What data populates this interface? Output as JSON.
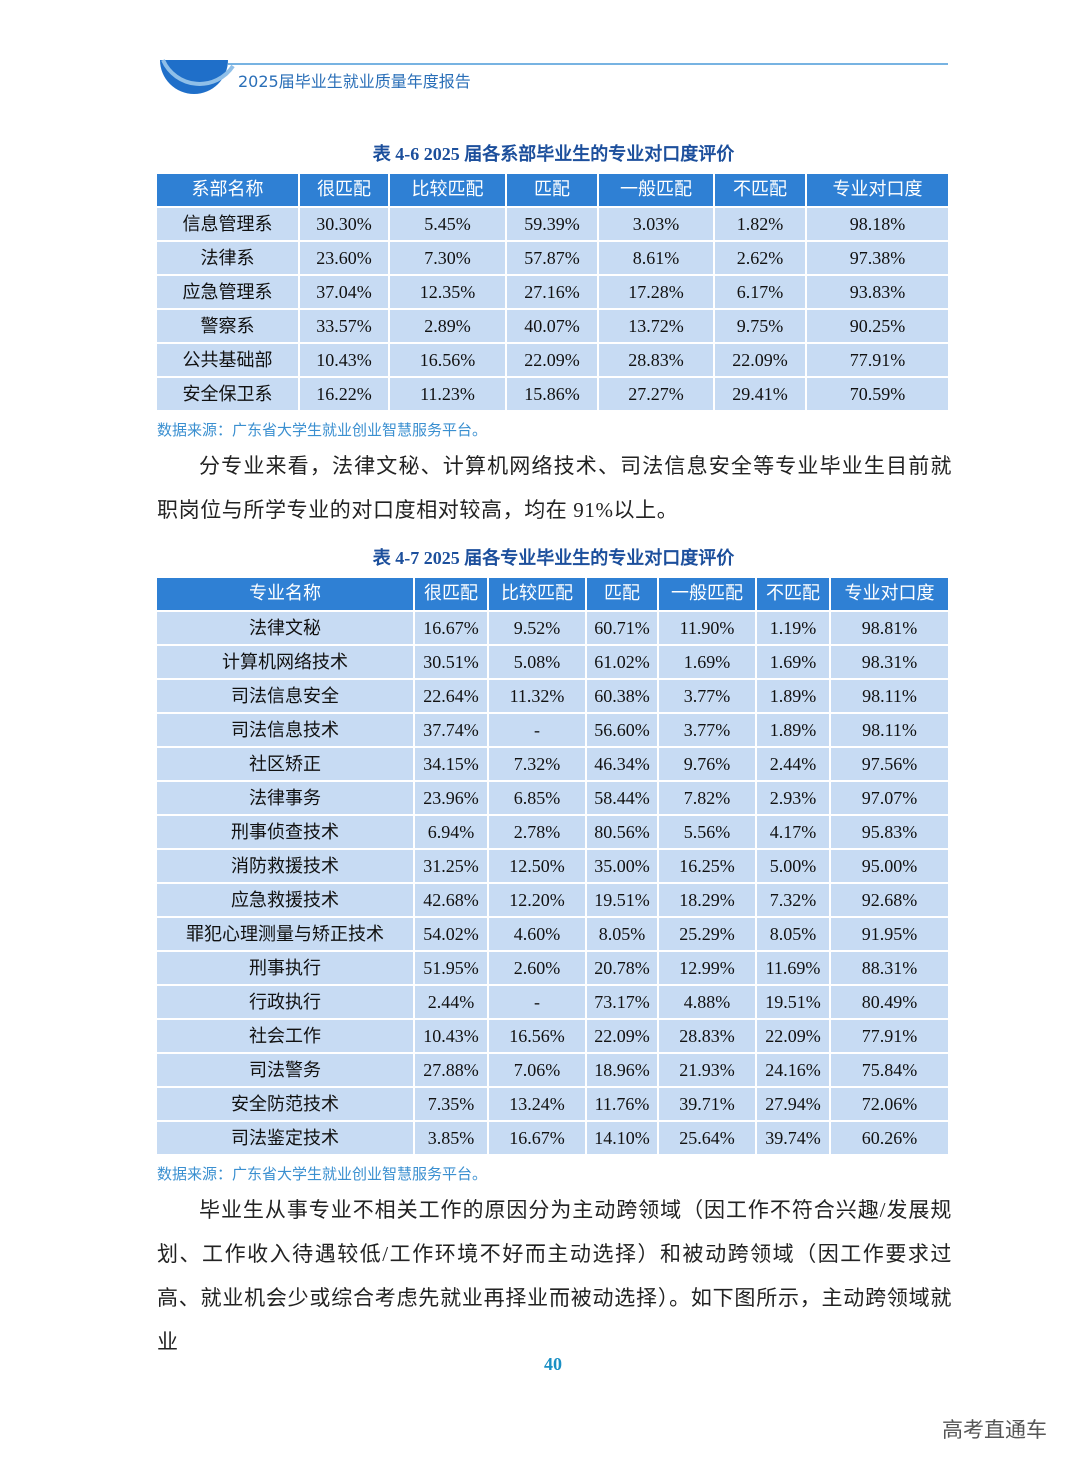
{
  "header": {
    "title": "2025届毕业生就业质量年度报告"
  },
  "table1": {
    "caption": "表 4-6  2025 届各系部毕业生的专业对口度评价",
    "headers": [
      "系部名称",
      "很匹配",
      "比较匹配",
      "匹配",
      "一般匹配",
      "不匹配",
      "专业对口度"
    ],
    "rows": [
      [
        "信息管理系",
        "30.30%",
        "5.45%",
        "59.39%",
        "3.03%",
        "1.82%",
        "98.18%"
      ],
      [
        "法律系",
        "23.60%",
        "7.30%",
        "57.87%",
        "8.61%",
        "2.62%",
        "97.38%"
      ],
      [
        "应急管理系",
        "37.04%",
        "12.35%",
        "27.16%",
        "17.28%",
        "6.17%",
        "93.83%"
      ],
      [
        "警察系",
        "33.57%",
        "2.89%",
        "40.07%",
        "13.72%",
        "9.75%",
        "90.25%"
      ],
      [
        "公共基础部",
        "10.43%",
        "16.56%",
        "22.09%",
        "28.83%",
        "22.09%",
        "77.91%"
      ],
      [
        "安全保卫系",
        "16.22%",
        "11.23%",
        "15.86%",
        "27.27%",
        "29.41%",
        "70.59%"
      ]
    ],
    "source": "数据来源：广东省大学生就业创业智慧服务平台。"
  },
  "paragraph1": "分专业来看，法律文秘、计算机网络技术、司法信息安全等专业毕业生目前就职岗位与所学专业的对口度相对较高，均在 91%以上。",
  "table2": {
    "caption": "表 4-7  2025 届各专业毕业生的专业对口度评价",
    "headers": [
      "专业名称",
      "很匹配",
      "比较匹配",
      "匹配",
      "一般匹配",
      "不匹配",
      "专业对口度"
    ],
    "rows": [
      [
        "法律文秘",
        "16.67%",
        "9.52%",
        "60.71%",
        "11.90%",
        "1.19%",
        "98.81%"
      ],
      [
        "计算机网络技术",
        "30.51%",
        "5.08%",
        "61.02%",
        "1.69%",
        "1.69%",
        "98.31%"
      ],
      [
        "司法信息安全",
        "22.64%",
        "11.32%",
        "60.38%",
        "3.77%",
        "1.89%",
        "98.11%"
      ],
      [
        "司法信息技术",
        "37.74%",
        "-",
        "56.60%",
        "3.77%",
        "1.89%",
        "98.11%"
      ],
      [
        "社区矫正",
        "34.15%",
        "7.32%",
        "46.34%",
        "9.76%",
        "2.44%",
        "97.56%"
      ],
      [
        "法律事务",
        "23.96%",
        "6.85%",
        "58.44%",
        "7.82%",
        "2.93%",
        "97.07%"
      ],
      [
        "刑事侦查技术",
        "6.94%",
        "2.78%",
        "80.56%",
        "5.56%",
        "4.17%",
        "95.83%"
      ],
      [
        "消防救援技术",
        "31.25%",
        "12.50%",
        "35.00%",
        "16.25%",
        "5.00%",
        "95.00%"
      ],
      [
        "应急救援技术",
        "42.68%",
        "12.20%",
        "19.51%",
        "18.29%",
        "7.32%",
        "92.68%"
      ],
      [
        "罪犯心理测量与矫正技术",
        "54.02%",
        "4.60%",
        "8.05%",
        "25.29%",
        "8.05%",
        "91.95%"
      ],
      [
        "刑事执行",
        "51.95%",
        "2.60%",
        "20.78%",
        "12.99%",
        "11.69%",
        "88.31%"
      ],
      [
        "行政执行",
        "2.44%",
        "-",
        "73.17%",
        "4.88%",
        "19.51%",
        "80.49%"
      ],
      [
        "社会工作",
        "10.43%",
        "16.56%",
        "22.09%",
        "28.83%",
        "22.09%",
        "77.91%"
      ],
      [
        "司法警务",
        "27.88%",
        "7.06%",
        "18.96%",
        "21.93%",
        "24.16%",
        "75.84%"
      ],
      [
        "安全防范技术",
        "7.35%",
        "13.24%",
        "11.76%",
        "39.71%",
        "27.94%",
        "72.06%"
      ],
      [
        "司法鉴定技术",
        "3.85%",
        "16.67%",
        "14.10%",
        "25.64%",
        "39.74%",
        "60.26%"
      ]
    ],
    "source": "数据来源：广东省大学生就业创业智慧服务平台。"
  },
  "paragraph2": "毕业生从事专业不相关工作的原因分为主动跨领域（因工作不符合兴趣/发展规划、工作收入待遇较低/工作环境不好而主动选择）和被动跨领域（因工作要求过高、就业机会少或综合考虑先就业再择业而被动选择）。如下图所示，主动跨领域就业",
  "page_number": "40",
  "watermark": "高考直通车"
}
